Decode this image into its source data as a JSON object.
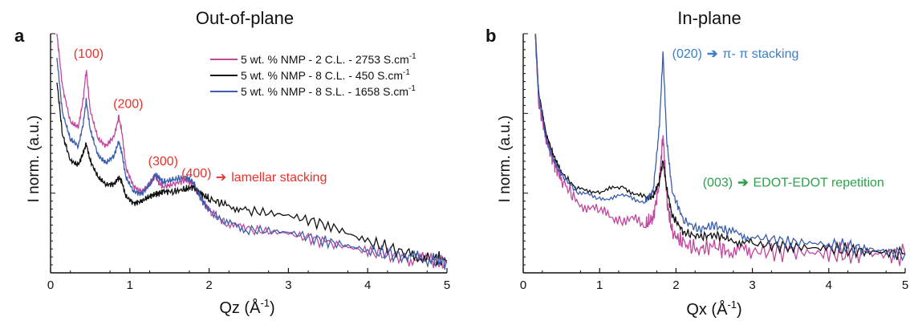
{
  "chart_data": [
    {
      "panel": "a",
      "type": "line",
      "title": "Out-of-plane",
      "xlabel": "Qz (Å",
      "xlabel_sup": "-1",
      "xlabel_close": ")",
      "ylabel": "I norm. (a.u.)",
      "xlim": [
        0,
        5
      ],
      "ylim": [
        0,
        1
      ],
      "x_ticks": [
        "0",
        "1",
        "2",
        "3",
        "4",
        "5"
      ],
      "legend_position": "top-right",
      "series": [
        {
          "name": "5 wt. % NMP - 2 C.L. - 2753 S.cm",
          "name_sup": "-1",
          "color": "#c0489e",
          "x": [
            0.08,
            0.15,
            0.25,
            0.35,
            0.41,
            0.45,
            0.5,
            0.6,
            0.7,
            0.8,
            0.86,
            0.9,
            0.95,
            1.05,
            1.15,
            1.25,
            1.32,
            1.36,
            1.42,
            1.55,
            1.7,
            1.8,
            1.9,
            2.0,
            2.2,
            2.5,
            3.0,
            3.5,
            4.0,
            4.5,
            4.8,
            5.0
          ],
          "y": [
            1.0,
            0.78,
            0.63,
            0.61,
            0.72,
            0.85,
            0.68,
            0.56,
            0.53,
            0.57,
            0.65,
            0.59,
            0.44,
            0.36,
            0.34,
            0.37,
            0.41,
            0.38,
            0.36,
            0.37,
            0.39,
            0.37,
            0.31,
            0.26,
            0.21,
            0.18,
            0.165,
            0.125,
            0.09,
            0.06,
            0.05,
            0.04
          ]
        },
        {
          "name": "5 wt. % NMP - 8 C.L. - 450 S.cm",
          "name_sup": "-1",
          "color": "#111111",
          "x": [
            0.08,
            0.15,
            0.25,
            0.35,
            0.41,
            0.45,
            0.5,
            0.6,
            0.7,
            0.8,
            0.86,
            0.9,
            0.95,
            1.05,
            1.15,
            1.25,
            1.32,
            1.36,
            1.42,
            1.55,
            1.7,
            1.8,
            1.9,
            2.0,
            2.2,
            2.5,
            3.0,
            3.5,
            4.0,
            4.5,
            4.8,
            5.0
          ],
          "y": [
            0.8,
            0.58,
            0.47,
            0.45,
            0.5,
            0.54,
            0.47,
            0.4,
            0.37,
            0.37,
            0.4,
            0.38,
            0.32,
            0.29,
            0.3,
            0.32,
            0.33,
            0.33,
            0.34,
            0.34,
            0.35,
            0.36,
            0.33,
            0.31,
            0.285,
            0.26,
            0.24,
            0.2,
            0.13,
            0.08,
            0.06,
            0.05
          ]
        },
        {
          "name": "5 wt. % NMP - 8 S.L. - 1658 S.cm",
          "name_sup": "-1",
          "color": "#3b5dab",
          "x": [
            0.08,
            0.15,
            0.25,
            0.35,
            0.41,
            0.45,
            0.5,
            0.6,
            0.7,
            0.8,
            0.86,
            0.9,
            0.95,
            1.05,
            1.15,
            1.25,
            1.32,
            1.36,
            1.42,
            1.55,
            1.7,
            1.8,
            1.9,
            2.0,
            2.2,
            2.5,
            3.0,
            3.5,
            4.0,
            4.5,
            4.8,
            5.0
          ],
          "y": [
            0.9,
            0.67,
            0.56,
            0.53,
            0.62,
            0.72,
            0.6,
            0.49,
            0.46,
            0.49,
            0.55,
            0.5,
            0.4,
            0.34,
            0.33,
            0.37,
            0.41,
            0.4,
            0.38,
            0.39,
            0.4,
            0.38,
            0.31,
            0.26,
            0.21,
            0.18,
            0.17,
            0.13,
            0.095,
            0.065,
            0.055,
            0.045
          ]
        }
      ],
      "annotations": [
        {
          "text": "(100)",
          "x": 0.48,
          "y": 0.9,
          "color": "#e8312a"
        },
        {
          "text": "(200)",
          "x": 0.98,
          "y": 0.69,
          "color": "#e8312a"
        },
        {
          "text": "(300)",
          "x": 1.42,
          "y": 0.45,
          "color": "#e8312a"
        },
        {
          "text": "(400)",
          "x": 1.84,
          "y": 0.4,
          "color": "#e8312a"
        }
      ],
      "note": {
        "text": "lamellar stacking",
        "color": "#e8312a",
        "arrow": "➔"
      }
    },
    {
      "panel": "b",
      "type": "line",
      "title": "In-plane",
      "xlabel": "Qx (Å",
      "xlabel_sup": "-1",
      "xlabel_close": ")",
      "ylabel": "I norm. (a.u.)",
      "xlim": [
        0,
        5
      ],
      "ylim": [
        0,
        1
      ],
      "x_ticks": [
        "0",
        "1",
        "2",
        "3",
        "4",
        "5"
      ],
      "series": [
        {
          "color": "#c0489e",
          "x": [
            0.16,
            0.2,
            0.3,
            0.4,
            0.5,
            0.7,
            1.0,
            1.3,
            1.6,
            1.7,
            1.78,
            1.83,
            1.88,
            1.95,
            2.1,
            2.3,
            2.5,
            2.7,
            3.0,
            3.5,
            4.0,
            4.5,
            5.0
          ],
          "y": [
            1.0,
            0.72,
            0.56,
            0.46,
            0.39,
            0.3,
            0.25,
            0.23,
            0.2,
            0.23,
            0.37,
            0.58,
            0.3,
            0.17,
            0.12,
            0.1,
            0.11,
            0.09,
            0.09,
            0.09,
            0.08,
            0.08,
            0.075
          ]
        },
        {
          "color": "#111111",
          "x": [
            0.16,
            0.2,
            0.3,
            0.4,
            0.5,
            0.7,
            1.0,
            1.3,
            1.6,
            1.7,
            1.78,
            1.83,
            1.88,
            1.95,
            2.1,
            2.3,
            2.5,
            2.7,
            3.0,
            3.5,
            4.0,
            4.5,
            5.0
          ],
          "y": [
            1.0,
            0.76,
            0.58,
            0.49,
            0.42,
            0.35,
            0.34,
            0.36,
            0.31,
            0.32,
            0.38,
            0.47,
            0.35,
            0.24,
            0.17,
            0.15,
            0.16,
            0.14,
            0.12,
            0.11,
            0.1,
            0.09,
            0.08
          ]
        },
        {
          "color": "#3b5dab",
          "x": [
            0.16,
            0.2,
            0.3,
            0.4,
            0.5,
            0.7,
            1.0,
            1.3,
            1.6,
            1.7,
            1.78,
            1.83,
            1.88,
            1.95,
            2.1,
            2.3,
            2.5,
            2.7,
            3.0,
            3.5,
            4.0,
            4.5,
            5.0
          ],
          "y": [
            1.0,
            0.75,
            0.56,
            0.47,
            0.41,
            0.34,
            0.31,
            0.32,
            0.3,
            0.34,
            0.6,
            0.92,
            0.55,
            0.34,
            0.22,
            0.18,
            0.2,
            0.17,
            0.15,
            0.13,
            0.12,
            0.1,
            0.08
          ]
        }
      ],
      "annotations": [
        {
          "text": "(020)",
          "label": "π- π stacking",
          "x": 1.95,
          "y": 0.9,
          "color": "#3b7fc4"
        },
        {
          "text": "(003)",
          "label": "EDOT-EDOT repetition",
          "x": 2.35,
          "y": 0.36,
          "color": "#2aa14a"
        }
      ]
    }
  ]
}
